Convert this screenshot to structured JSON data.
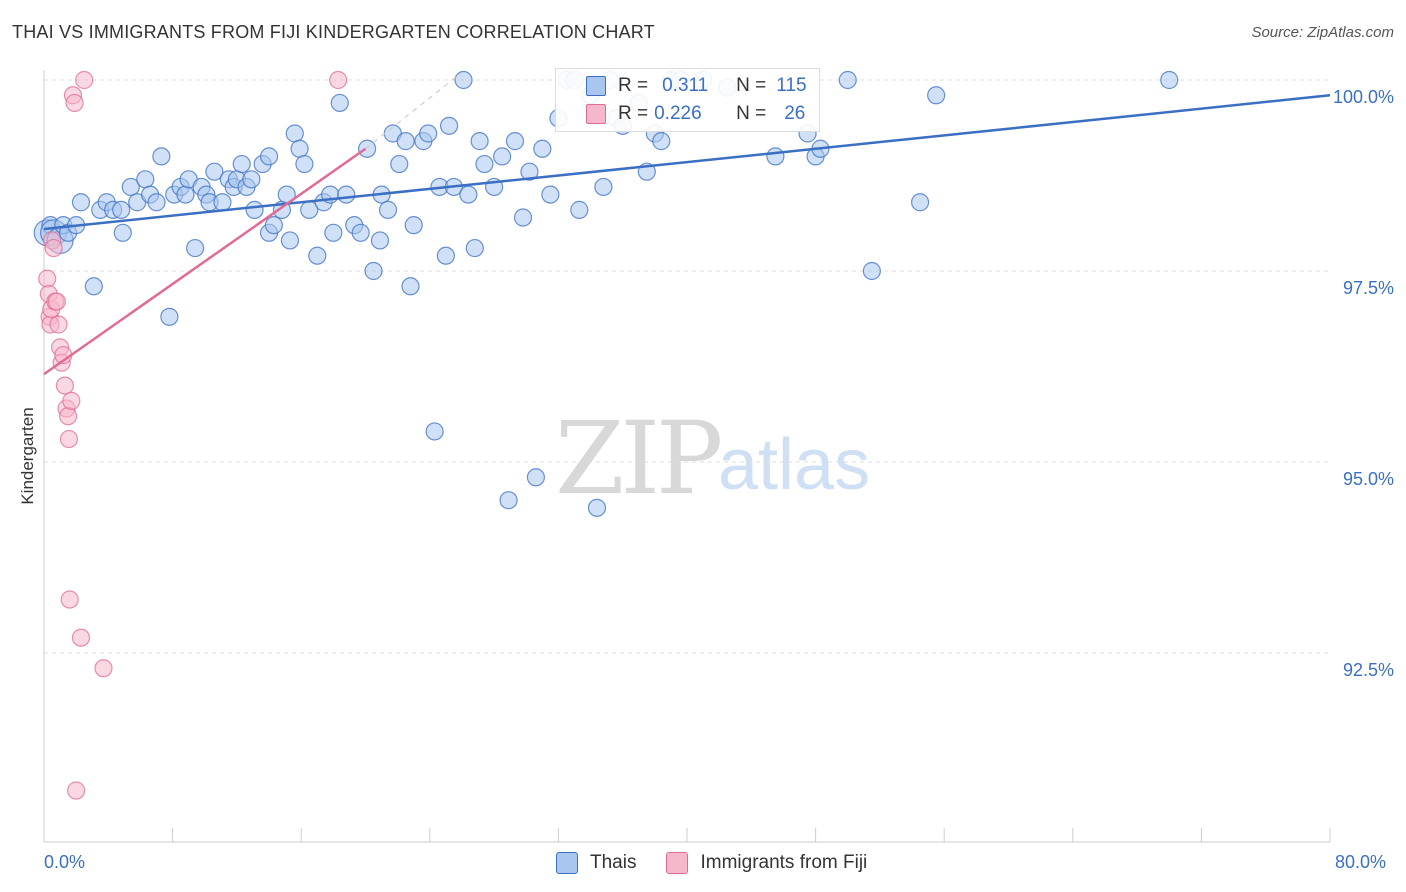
{
  "title": "THAI VS IMMIGRANTS FROM FIJI KINDERGARTEN CORRELATION CHART",
  "source": "Source: ZipAtlas.com",
  "watermark": {
    "zip": "ZIP",
    "atlas": "atlas"
  },
  "colors": {
    "blue": "#3b6fc4",
    "blue_fill": "#a9c6ef",
    "pink": "#e06b95",
    "pink_fill": "#f5b8cb",
    "grid": "#dddddd"
  },
  "legend_top": {
    "rows": [
      {
        "r_label": "R =",
        "r_value": "0.311",
        "n_label": "N =",
        "n_value": "115"
      },
      {
        "r_label": "R =",
        "r_value": "0.226",
        "n_label": "N =",
        "n_value": "26"
      }
    ]
  },
  "chart_data": {
    "type": "scatter",
    "title": "THAI VS IMMIGRANTS FROM FIJI KINDERGARTEN CORRELATION CHART",
    "xlabel": "",
    "ylabel": "Kindergarten",
    "xlim": [
      0,
      80
    ],
    "ylim": [
      90.3,
      100.3
    ],
    "x_tick_labels": [
      "0.0%",
      "80.0%"
    ],
    "y_ticks": [
      92.5,
      95.0,
      97.5,
      100.0
    ],
    "y_tick_labels": [
      "92.5%",
      "95.0%",
      "97.5%",
      "100.0%"
    ],
    "grid": true,
    "legend_position": "bottom",
    "series": [
      {
        "name": "Thais",
        "color": "#3b6fc4",
        "fill": "#a9c6ef",
        "R": 0.311,
        "N": 115,
        "trend": {
          "x0": 0,
          "y0": 98.05,
          "x1": 80,
          "y1": 99.8
        },
        "points": [
          [
            0.2,
            98.0
          ],
          [
            0.4,
            98.1
          ],
          [
            0.6,
            98.0
          ],
          [
            1.0,
            97.9
          ],
          [
            1.2,
            98.1
          ],
          [
            1.5,
            98.0
          ],
          [
            2.0,
            98.1
          ],
          [
            2.3,
            98.4
          ],
          [
            3.1,
            97.3
          ],
          [
            3.5,
            98.3
          ],
          [
            3.9,
            98.4
          ],
          [
            4.3,
            98.3
          ],
          [
            4.8,
            98.3
          ],
          [
            4.9,
            98.0
          ],
          [
            5.4,
            98.6
          ],
          [
            5.8,
            98.4
          ],
          [
            6.3,
            98.7
          ],
          [
            6.6,
            98.5
          ],
          [
            7.0,
            98.4
          ],
          [
            7.3,
            99.0
          ],
          [
            7.8,
            96.9
          ],
          [
            8.1,
            98.5
          ],
          [
            8.5,
            98.6
          ],
          [
            8.8,
            98.5
          ],
          [
            9.0,
            98.7
          ],
          [
            9.4,
            97.8
          ],
          [
            9.8,
            98.6
          ],
          [
            10.1,
            98.5
          ],
          [
            10.3,
            98.4
          ],
          [
            10.6,
            98.8
          ],
          [
            11.1,
            98.4
          ],
          [
            11.5,
            98.7
          ],
          [
            11.8,
            98.6
          ],
          [
            12.0,
            98.7
          ],
          [
            12.3,
            98.9
          ],
          [
            12.6,
            98.6
          ],
          [
            12.9,
            98.7
          ],
          [
            13.1,
            98.3
          ],
          [
            13.6,
            98.9
          ],
          [
            14.0,
            99.0
          ],
          [
            14.0,
            98.0
          ],
          [
            14.3,
            98.1
          ],
          [
            14.8,
            98.3
          ],
          [
            15.1,
            98.5
          ],
          [
            15.3,
            97.9
          ],
          [
            15.6,
            99.3
          ],
          [
            15.9,
            99.1
          ],
          [
            16.2,
            98.9
          ],
          [
            16.5,
            98.3
          ],
          [
            17.0,
            97.7
          ],
          [
            17.4,
            98.4
          ],
          [
            17.8,
            98.5
          ],
          [
            18.0,
            98.0
          ],
          [
            18.4,
            99.7
          ],
          [
            18.8,
            98.5
          ],
          [
            19.3,
            98.1
          ],
          [
            19.7,
            98.0
          ],
          [
            20.1,
            99.1
          ],
          [
            20.5,
            97.5
          ],
          [
            20.9,
            97.9
          ],
          [
            21.0,
            98.5
          ],
          [
            21.4,
            98.3
          ],
          [
            21.7,
            99.3
          ],
          [
            22.1,
            98.9
          ],
          [
            22.5,
            99.2
          ],
          [
            22.8,
            97.3
          ],
          [
            23.0,
            98.1
          ],
          [
            23.6,
            99.2
          ],
          [
            23.9,
            99.3
          ],
          [
            24.3,
            95.4
          ],
          [
            24.6,
            98.6
          ],
          [
            25.0,
            97.7
          ],
          [
            25.2,
            99.4
          ],
          [
            25.5,
            98.6
          ],
          [
            26.1,
            100.0
          ],
          [
            26.4,
            98.5
          ],
          [
            26.8,
            97.8
          ],
          [
            27.1,
            99.2
          ],
          [
            27.4,
            98.9
          ],
          [
            28.0,
            98.6
          ],
          [
            28.5,
            99.0
          ],
          [
            28.9,
            94.5
          ],
          [
            29.3,
            99.2
          ],
          [
            29.8,
            98.2
          ],
          [
            30.2,
            98.8
          ],
          [
            30.6,
            94.8
          ],
          [
            31.0,
            99.1
          ],
          [
            31.5,
            98.5
          ],
          [
            32.0,
            99.5
          ],
          [
            32.5,
            100.0
          ],
          [
            33.0,
            100.0
          ],
          [
            33.3,
            98.3
          ],
          [
            34.0,
            99.8
          ],
          [
            34.4,
            94.4
          ],
          [
            34.8,
            98.6
          ],
          [
            35.2,
            100.0
          ],
          [
            35.6,
            99.5
          ],
          [
            36.0,
            99.4
          ],
          [
            37.0,
            99.7
          ],
          [
            37.5,
            98.8
          ],
          [
            38.0,
            99.3
          ],
          [
            38.4,
            99.2
          ],
          [
            39.0,
            100.0
          ],
          [
            39.6,
            100.0
          ],
          [
            41.0,
            100.0
          ],
          [
            42.5,
            99.9
          ],
          [
            45.5,
            99.0
          ],
          [
            47.5,
            99.3
          ],
          [
            48.0,
            99.0
          ],
          [
            48.3,
            99.1
          ],
          [
            50.0,
            100.0
          ],
          [
            51.5,
            97.5
          ],
          [
            54.5,
            98.4
          ],
          [
            55.5,
            99.8
          ],
          [
            70.0,
            100.0
          ]
        ],
        "sizes": {
          "large": [
            [
              0.2,
              98.0
            ],
            [
              0.6,
              98.0
            ],
            [
              1.0,
              97.9
            ]
          ]
        }
      },
      {
        "name": "Immigrants from Fiji",
        "color": "#e06b95",
        "fill": "#f5b8cb",
        "R": 0.226,
        "N": 26,
        "trend": {
          "x0": 0,
          "y0": 96.15,
          "x1": 20,
          "y1": 99.1
        },
        "trend_extension": {
          "x0": 20,
          "y0": 99.1,
          "x1": 26,
          "y1": 100.1
        },
        "points": [
          [
            0.2,
            97.4
          ],
          [
            0.3,
            97.2
          ],
          [
            0.35,
            96.9
          ],
          [
            0.4,
            96.8
          ],
          [
            0.45,
            97.0
          ],
          [
            0.5,
            97.9
          ],
          [
            0.6,
            97.8
          ],
          [
            0.7,
            97.1
          ],
          [
            0.8,
            97.1
          ],
          [
            0.9,
            96.8
          ],
          [
            1.0,
            96.5
          ],
          [
            1.1,
            96.3
          ],
          [
            1.2,
            96.4
          ],
          [
            1.3,
            96.0
          ],
          [
            1.4,
            95.7
          ],
          [
            1.5,
            95.6
          ],
          [
            1.55,
            95.3
          ],
          [
            1.7,
            95.8
          ],
          [
            1.6,
            93.2
          ],
          [
            1.8,
            99.8
          ],
          [
            1.9,
            99.7
          ],
          [
            2.3,
            92.7
          ],
          [
            2.5,
            100.0
          ],
          [
            3.7,
            92.3
          ],
          [
            2.0,
            90.7
          ],
          [
            18.3,
            100.0
          ]
        ]
      }
    ]
  },
  "bottom_legend": [
    {
      "label": "Thais"
    },
    {
      "label": "Immigrants from Fiji"
    }
  ]
}
